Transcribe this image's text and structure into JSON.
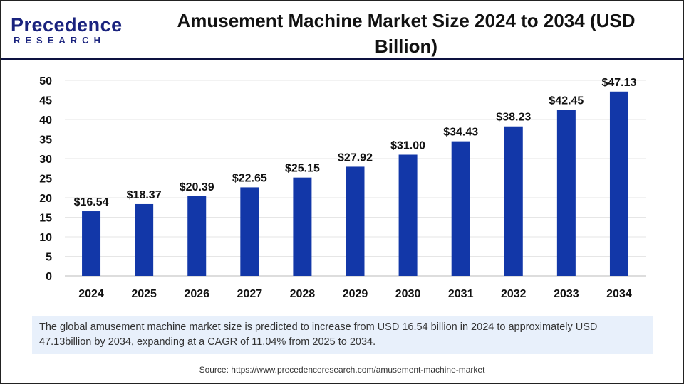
{
  "logo": {
    "line1": "Precedence",
    "line2": "RESEARCH"
  },
  "header": {
    "title": "Amusement Machine Market Size 2024 to 2034 (USD Billion)"
  },
  "chart_data": {
    "type": "bar",
    "title": "Amusement Machine Market Size 2024 to 2034 (USD Billion)",
    "categories": [
      "2024",
      "2025",
      "2026",
      "2027",
      "2028",
      "2029",
      "2030",
      "2031",
      "2032",
      "2033",
      "2034"
    ],
    "values": [
      16.54,
      18.37,
      20.39,
      22.65,
      25.15,
      27.92,
      31.0,
      34.43,
      38.23,
      42.45,
      47.13
    ],
    "data_labels": [
      "$16.54",
      "$18.37",
      "$20.39",
      "$22.65",
      "$25.15",
      "$27.92",
      "$31.00",
      "$34.43",
      "$38.23",
      "$42.45",
      "$47.13"
    ],
    "ylim": [
      0,
      50
    ],
    "yticks": [
      "0",
      "5",
      "10",
      "15",
      "20",
      "25",
      "30",
      "35",
      "40",
      "45",
      "50"
    ],
    "grid": true,
    "bar_color": "#1237a8"
  },
  "caption": "The global amusement machine market size is predicted to increase from USD 16.54 billion in 2024 to approximately USD 47.13billion by 2034, expanding at a CAGR of 11.04% from 2025 to 2034.",
  "source": "Source: https://www.precedenceresearch.com/amusement-machine-market"
}
